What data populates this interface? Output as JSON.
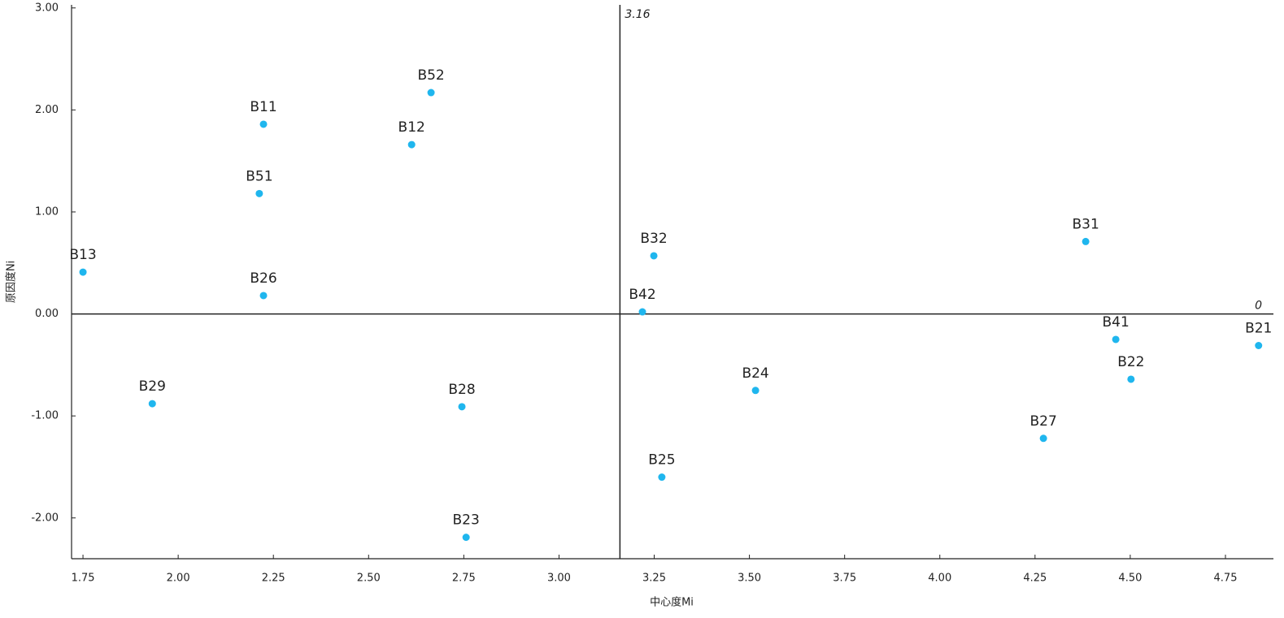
{
  "chart_data": {
    "type": "scatter",
    "x_label": "中心度Mi",
    "y_label": "原因度Ni",
    "labels": [
      "B13",
      "B11",
      "B52",
      "B12",
      "B51",
      "B26",
      "B29",
      "B28",
      "B23",
      "B32",
      "B42",
      "B31",
      "B41",
      "B21",
      "B22",
      "B24",
      "B27",
      "B25"
    ],
    "x": [
      1.75,
      2.224,
      2.664,
      2.613,
      2.213,
      2.224,
      1.932,
      2.745,
      2.756,
      3.249,
      3.219,
      4.383,
      4.462,
      4.837,
      4.502,
      3.516,
      4.272,
      3.27
    ],
    "y": [
      0.41,
      1.86,
      2.17,
      1.66,
      1.18,
      0.18,
      -0.88,
      -0.91,
      -2.19,
      0.57,
      0.02,
      0.71,
      -0.25,
      -0.31,
      -0.64,
      -0.75,
      -1.22,
      -1.6
    ],
    "color": "#1fb6ee",
    "xlim": [
      1.72,
      4.876
    ],
    "ylim": [
      -2.4,
      3.03
    ],
    "xticks": [
      {
        "value": 1.75,
        "label": "1.75"
      },
      {
        "value": 2,
        "label": "2.00"
      },
      {
        "value": 2.25,
        "label": "2.25"
      },
      {
        "value": 2.5,
        "label": "2.50"
      },
      {
        "value": 2.75,
        "label": "2.75"
      },
      {
        "value": 3,
        "label": "3.00"
      },
      {
        "value": 3.25,
        "label": "3.25"
      },
      {
        "value": 3.5,
        "label": "3.50"
      },
      {
        "value": 3.75,
        "label": "3.75"
      },
      {
        "value": 4,
        "label": "4.00"
      },
      {
        "value": 4.25,
        "label": "4.25"
      },
      {
        "value": 4.5,
        "label": "4.50"
      },
      {
        "value": 4.75,
        "label": "4.75"
      }
    ],
    "yticks": [
      {
        "value": -2,
        "label": "-2.00"
      },
      {
        "value": -1,
        "label": "-1.00"
      },
      {
        "value": 0,
        "label": "0.00"
      },
      {
        "value": 1,
        "label": "1.00"
      },
      {
        "value": 2,
        "label": "2.00"
      },
      {
        "value": 3,
        "label": "3.00"
      }
    ],
    "reference_x": 3.16,
    "reference_y": 0
  }
}
